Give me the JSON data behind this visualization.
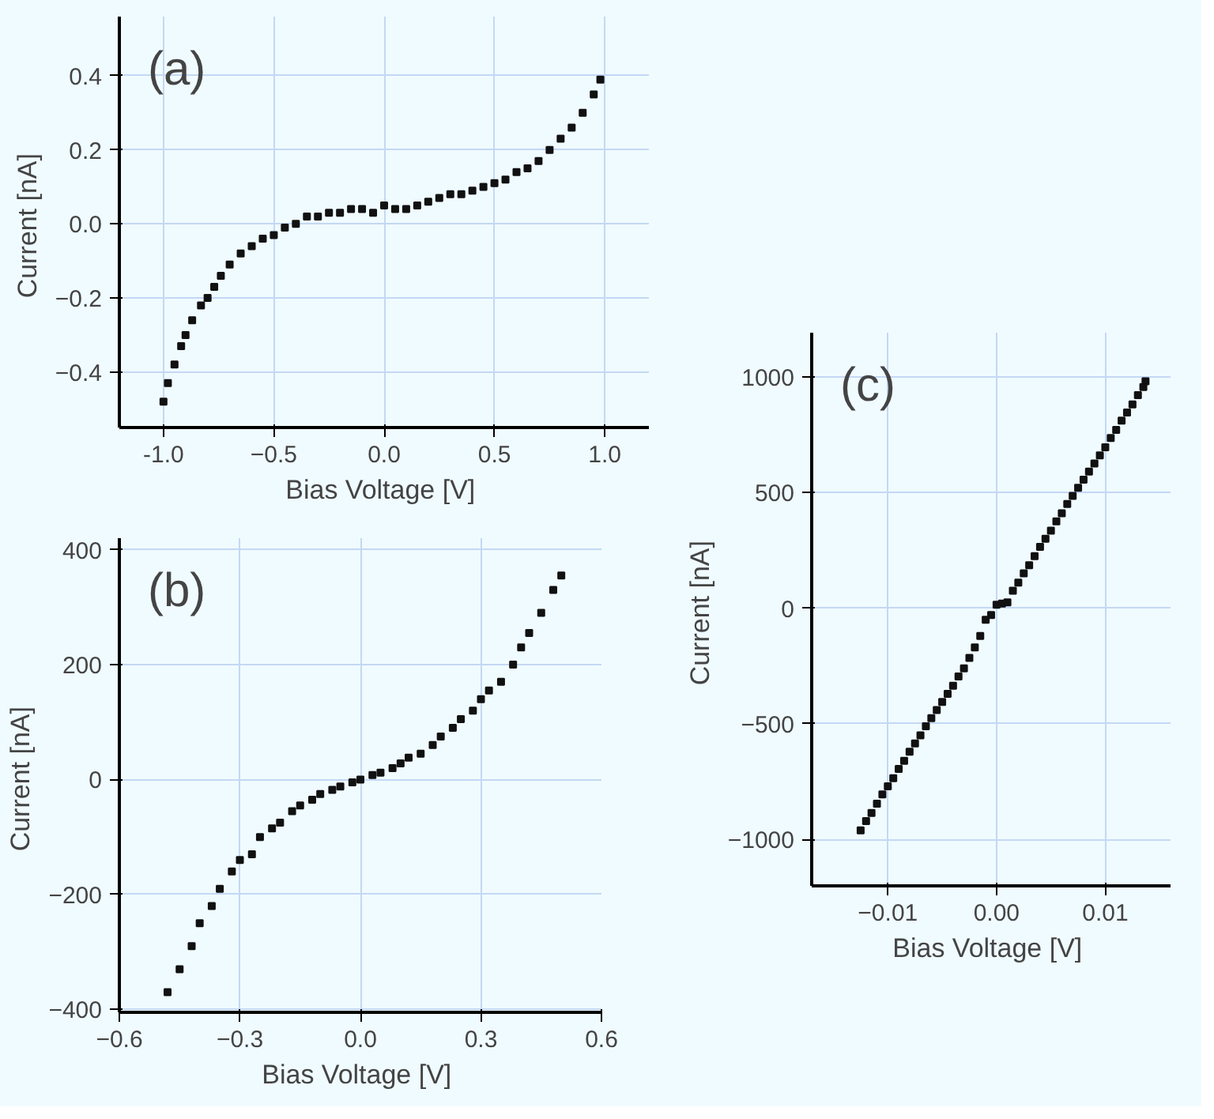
{
  "chart_data": [
    {
      "type": "scatter",
      "xlabel": "Bias Voltage  [V]",
      "ylabel": "Current  [nA]",
      "annotations": [
        "(a)"
      ],
      "marker": "square",
      "grid": true,
      "xlim": [
        -1.2,
        1.2
      ],
      "ylim": [
        -0.55,
        0.56
      ],
      "xticks": [
        {
          "value": -1.0,
          "label": "-1.0"
        },
        -0.5,
        {
          "value": 0,
          "label": "0.0"
        },
        0.5,
        {
          "value": 1.0,
          "label": "1.0"
        }
      ],
      "yticks": [
        -0.4,
        -0.2,
        {
          "value": 0,
          "label": "0.0"
        },
        0.2,
        0.4
      ],
      "x": [
        -1.0,
        -0.98,
        -0.95,
        -0.92,
        -0.9,
        -0.87,
        -0.83,
        -0.8,
        -0.77,
        -0.74,
        -0.7,
        -0.65,
        -0.6,
        -0.55,
        -0.5,
        -0.45,
        -0.4,
        -0.35,
        -0.3,
        -0.25,
        -0.2,
        -0.15,
        -0.1,
        -0.05,
        0.0,
        0.05,
        0.1,
        0.15,
        0.2,
        0.25,
        0.3,
        0.35,
        0.4,
        0.45,
        0.5,
        0.55,
        0.6,
        0.65,
        0.7,
        0.75,
        0.8,
        0.85,
        0.9,
        0.95,
        0.98
      ],
      "series": [
        {
          "color": "#111111",
          "values": [
            -0.48,
            -0.43,
            -0.38,
            -0.33,
            -0.3,
            -0.26,
            -0.22,
            -0.2,
            -0.17,
            -0.14,
            -0.11,
            -0.08,
            -0.06,
            -0.04,
            -0.03,
            -0.01,
            0.0,
            0.02,
            0.02,
            0.03,
            0.03,
            0.04,
            0.04,
            0.03,
            0.05,
            0.04,
            0.04,
            0.05,
            0.06,
            0.07,
            0.08,
            0.08,
            0.09,
            0.1,
            0.11,
            0.12,
            0.14,
            0.15,
            0.17,
            0.2,
            0.23,
            0.26,
            0.3,
            0.35,
            0.39
          ]
        }
      ]
    },
    {
      "type": "scatter",
      "xlabel": "Bias Voltage  [V]",
      "ylabel": "Current  [nA]",
      "annotations": [
        "(b)"
      ],
      "marker": "square",
      "grid": true,
      "xlim": [
        -0.6,
        0.6
      ],
      "ylim": [
        -405,
        420
      ],
      "xticks": [
        -0.6,
        -0.3,
        {
          "value": 0,
          "label": "0.0"
        },
        0.3,
        0.6
      ],
      "yticks": [
        -400,
        -200,
        0,
        200,
        400
      ],
      "x": [
        -0.48,
        -0.45,
        -0.42,
        -0.4,
        -0.37,
        -0.35,
        -0.32,
        -0.3,
        -0.27,
        -0.25,
        -0.22,
        -0.2,
        -0.17,
        -0.15,
        -0.12,
        -0.1,
        -0.07,
        -0.05,
        -0.02,
        0.0,
        0.03,
        0.05,
        0.08,
        0.1,
        0.12,
        0.15,
        0.18,
        0.2,
        0.23,
        0.25,
        0.28,
        0.3,
        0.32,
        0.35,
        0.38,
        0.4,
        0.42,
        0.45,
        0.48,
        0.5
      ],
      "series": [
        {
          "color": "#111111",
          "values": [
            -370,
            -330,
            -290,
            -250,
            -220,
            -190,
            -160,
            -140,
            -130,
            -100,
            -85,
            -75,
            -55,
            -45,
            -35,
            -25,
            -18,
            -12,
            -5,
            0,
            8,
            12,
            20,
            28,
            38,
            45,
            60,
            75,
            90,
            105,
            120,
            140,
            155,
            170,
            200,
            230,
            255,
            290,
            330,
            355
          ]
        }
      ]
    },
    {
      "type": "scatter",
      "xlabel": "Bias Voltage  [V]",
      "ylabel": "Current  [nA]",
      "annotations": [
        "(c)"
      ],
      "marker": "square",
      "grid": true,
      "xlim": [
        -0.017,
        0.016
      ],
      "ylim": [
        -1200,
        1190
      ],
      "xticks": [
        -0.01,
        {
          "value": 0,
          "label": "0.00"
        },
        0.01
      ],
      "yticks": [
        -1000,
        -500,
        0,
        500,
        1000
      ],
      "x": [
        -0.0125,
        -0.012,
        -0.0115,
        -0.011,
        -0.0105,
        -0.01,
        -0.0095,
        -0.009,
        -0.0085,
        -0.008,
        -0.0075,
        -0.007,
        -0.0065,
        -0.006,
        -0.0055,
        -0.005,
        -0.0045,
        -0.004,
        -0.0035,
        -0.003,
        -0.0025,
        -0.002,
        -0.0015,
        -0.001,
        -0.0005,
        0.0,
        0.0005,
        0.001,
        0.0015,
        0.002,
        0.0025,
        0.003,
        0.0035,
        0.004,
        0.0045,
        0.005,
        0.0055,
        0.006,
        0.0065,
        0.007,
        0.0075,
        0.008,
        0.0085,
        0.009,
        0.0095,
        0.01,
        0.0105,
        0.011,
        0.0115,
        0.012,
        0.0125,
        0.013,
        0.0135,
        0.0137
      ],
      "series": [
        {
          "color": "#111111",
          "values": [
            -960,
            -920,
            -885,
            -845,
            -805,
            -770,
            -735,
            -695,
            -660,
            -620,
            -585,
            -550,
            -510,
            -475,
            -440,
            -405,
            -370,
            -335,
            -295,
            -260,
            -215,
            -170,
            -120,
            -50,
            -30,
            15,
            20,
            25,
            75,
            110,
            150,
            185,
            225,
            265,
            300,
            335,
            375,
            410,
            450,
            485,
            520,
            555,
            590,
            625,
            660,
            695,
            735,
            770,
            810,
            845,
            880,
            920,
            955,
            980
          ]
        }
      ]
    }
  ]
}
